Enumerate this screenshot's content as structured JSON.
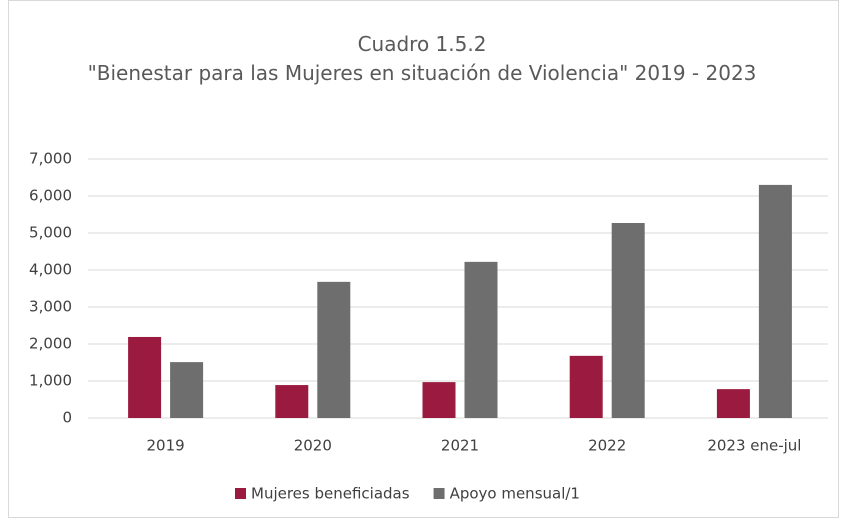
{
  "chart_data": {
    "type": "bar",
    "title": "Cuadro 1.5.2",
    "subtitle": "\"Bienestar para las Mujeres en situación de Violencia\" 2019 - 2023",
    "categories": [
      "2019",
      "2020",
      "2021",
      "2022",
      "2023 ene-jul"
    ],
    "series": [
      {
        "name": "Mujeres beneficiadas",
        "color": "#9b1b40",
        "values": [
          2190,
          890,
          970,
          1680,
          780
        ]
      },
      {
        "name": "Apoyo mensual/1",
        "color": "#6e6e6e",
        "values": [
          1510,
          3680,
          4220,
          5270,
          6300
        ]
      }
    ],
    "ylim": [
      0,
      7000
    ],
    "yticks": [
      0,
      {
        "value": 1000,
        "label": "1,000"
      },
      {
        "value": 2000,
        "label": "2,000"
      },
      {
        "value": 3000,
        "label": "3,000"
      },
      {
        "value": 4000,
        "label": "4,000"
      },
      {
        "value": 5000,
        "label": "5,000"
      },
      {
        "value": 6000,
        "label": "6,000"
      },
      {
        "value": 7000,
        "label": "7,000"
      }
    ],
    "grid": true,
    "legend": "bottom"
  }
}
